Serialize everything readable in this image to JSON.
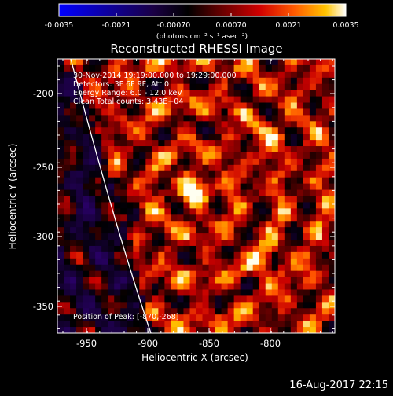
{
  "colorbar": {
    "tick_labels": [
      "-0.0035",
      "-0.0021",
      "-0.00070",
      "0.00070",
      "0.0021",
      "0.0035"
    ],
    "units_label": "(photons cm⁻² s⁻¹ asec⁻²)",
    "colors": [
      "#0000ff",
      "#2a0066",
      "#000000",
      "#7a0000",
      "#e00000",
      "#ff6a00",
      "#ffc000",
      "#ffffff"
    ]
  },
  "plot": {
    "title": "Reconstructed RHESSI Image",
    "xlabel": "Heliocentric X (arcsec)",
    "ylabel": "Heliocentric Y (arcsec)",
    "x_ticks": [
      "-950",
      "-900",
      "-850",
      "-800"
    ],
    "y_ticks": [
      "-200",
      "-250",
      "-300",
      "-350"
    ],
    "annotations": [
      "30-Nov-2014 19:19:00.000 to 19:29:00.000",
      "Detectors: 3F 6F 9F, Att 0",
      "Energy Range: 6.0 - 12.0 keV",
      "Clean    Total counts: 3.43E+04"
    ],
    "peak_label": "Position of Peak: [-870,-268]"
  },
  "footer": {
    "timestamp": "16-Aug-2017 22:15"
  }
}
